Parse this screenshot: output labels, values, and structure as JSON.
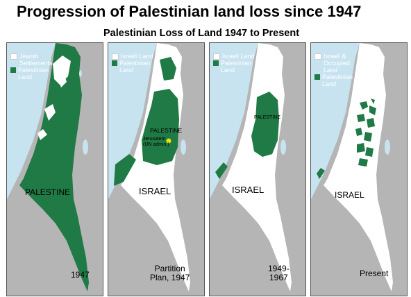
{
  "title": "Progression of Palestinian land loss since 1947",
  "subtitle": "Palestinian Loss of Land 1947 to Present",
  "colors": {
    "sea": "#c8e3f0",
    "palestinian": "#1f7a45",
    "israeli": "#ffffff",
    "neighbor": "#b5b5b5",
    "jerusalem": "#f2e600"
  },
  "panels": [
    {
      "legend": [
        {
          "swatch": "white",
          "label": "Jewish\nSettlements"
        },
        {
          "swatch": "green",
          "label": "Palestinian\nLand"
        }
      ],
      "labels": [
        "PALESTINE"
      ],
      "year": "1947"
    },
    {
      "legend": [
        {
          "swatch": "white",
          "label": "Israeli Land"
        },
        {
          "swatch": "green",
          "label": "Palestinian\nLand"
        }
      ],
      "labels": [
        "PALESTINE",
        "ISRAEL"
      ],
      "note": "Jerusalem\n(UN admin.)",
      "year": "Partition\nPlan, 1947"
    },
    {
      "legend": [
        {
          "swatch": "white",
          "label": "Israeli Land"
        },
        {
          "swatch": "green",
          "label": "Palestinian\nLand"
        }
      ],
      "labels": [
        "PALESTINE",
        "ISRAEL"
      ],
      "year": "1949-\n1967"
    },
    {
      "legend": [
        {
          "swatch": "white",
          "label": "Israeli &\nOccupied\nLand"
        },
        {
          "swatch": "green",
          "label": "Palestinian\nLand"
        }
      ],
      "labels": [
        "ISRAEL"
      ],
      "year": "Present"
    }
  ]
}
